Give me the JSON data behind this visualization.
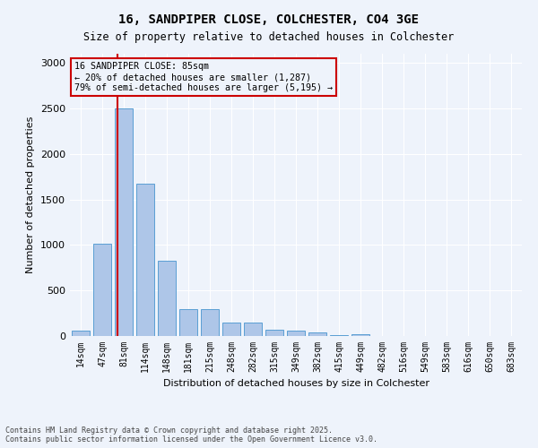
{
  "title": "16, SANDPIPER CLOSE, COLCHESTER, CO4 3GE",
  "subtitle": "Size of property relative to detached houses in Colchester",
  "xlabel": "Distribution of detached houses by size in Colchester",
  "ylabel": "Number of detached properties",
  "categories": [
    "14sqm",
    "47sqm",
    "81sqm",
    "114sqm",
    "148sqm",
    "181sqm",
    "215sqm",
    "248sqm",
    "282sqm",
    "315sqm",
    "349sqm",
    "382sqm",
    "415sqm",
    "449sqm",
    "482sqm",
    "516sqm",
    "549sqm",
    "583sqm",
    "616sqm",
    "650sqm",
    "683sqm"
  ],
  "values": [
    55,
    1010,
    2500,
    1670,
    830,
    295,
    295,
    150,
    150,
    65,
    55,
    35,
    10,
    15,
    0,
    0,
    0,
    0,
    0,
    0,
    0
  ],
  "bar_color": "#aec6e8",
  "bar_edge_color": "#5a9fd4",
  "property_line_x": 1.7,
  "annotation_text": "16 SANDPIPER CLOSE: 85sqm\n← 20% of detached houses are smaller (1,287)\n79% of semi-detached houses are larger (5,195) →",
  "annotation_box_color": "#cc0000",
  "background_color": "#eef3fb",
  "grid_color": "#ffffff",
  "ylim": [
    0,
    3100
  ],
  "yticks": [
    0,
    500,
    1000,
    1500,
    2000,
    2500,
    3000
  ],
  "footer1": "Contains HM Land Registry data © Crown copyright and database right 2025.",
  "footer2": "Contains public sector information licensed under the Open Government Licence v3.0."
}
